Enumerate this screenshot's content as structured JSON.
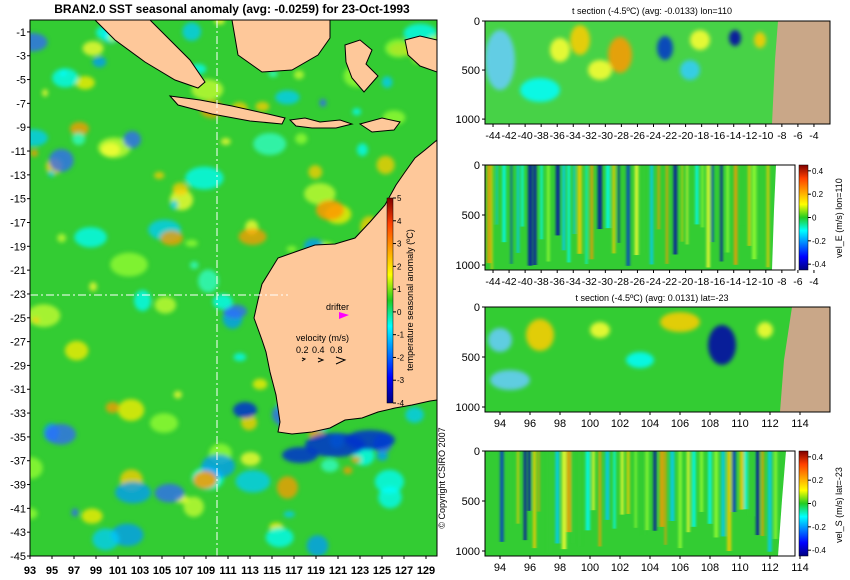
{
  "figure": {
    "main_title": "BRAN2.0 SST seasonal anomaly (avg: -0.0259) for 23-Oct-1993",
    "copyright": "© Copyright CSIRO 2007",
    "drifter_label": "drifter",
    "velocity_label": "velocity (m/s)",
    "velocity_scale": [
      "0.2",
      "0.4",
      "0.8"
    ],
    "colors": {
      "land": "#fec89a",
      "ocean_base": "#33cc33",
      "section_land": "#c9a788",
      "drifter": "#ff00ff"
    }
  },
  "chart_data": [
    {
      "type": "heatmap",
      "name": "map",
      "title": "BRAN2.0 SST seasonal anomaly (avg: -0.0259) for 23-Oct-1993",
      "x_ticks": [
        "93",
        "95",
        "97",
        "99",
        "101",
        "103",
        "105",
        "107",
        "109",
        "111",
        "113",
        "115",
        "117",
        "119",
        "121",
        "123",
        "125",
        "127",
        "129"
      ],
      "y_ticks": [
        "-1",
        "-3",
        "-5",
        "-7",
        "-9",
        "-11",
        "-13",
        "-15",
        "-17",
        "-19",
        "-21",
        "-23",
        "-25",
        "-27",
        "-29",
        "-31",
        "-33",
        "-35",
        "-37",
        "-39",
        "-41",
        "-43",
        "-45"
      ],
      "xlim": [
        93,
        130
      ],
      "ylim": [
        -45,
        0
      ],
      "section_lon": 110,
      "section_lat": -23,
      "colorbar": {
        "label": "temperature seasonal anomaly (ºC)",
        "ticks": [
          "5",
          "4",
          "3",
          "2",
          "1",
          "0",
          "-1",
          "-2",
          "-3",
          "-4"
        ],
        "range": [
          -4,
          5
        ]
      }
    },
    {
      "type": "heatmap",
      "name": "temp-lon-section",
      "title": "t section (-4.5ºC) (avg: -0.0133) lon=110",
      "x_ticks": [
        "-44",
        "-42",
        "-40",
        "-38",
        "-36",
        "-34",
        "-32",
        "-30",
        "-28",
        "-26",
        "-24",
        "-22",
        "-20",
        "-18",
        "-16",
        "-14",
        "-12",
        "-10",
        "-8",
        "-6",
        "-4"
      ],
      "y_ticks": [
        "0",
        "500",
        "1000"
      ],
      "xlim": [
        -45,
        -2
      ],
      "ylim": [
        1050,
        0
      ]
    },
    {
      "type": "heatmap",
      "name": "vel-e-section",
      "title": "",
      "x_ticks": [
        "-44",
        "-42",
        "-40",
        "-38",
        "-36",
        "-34",
        "-32",
        "-30",
        "-28",
        "-26",
        "-24",
        "-22",
        "-20",
        "-18",
        "-16",
        "-14",
        "-12",
        "-10",
        "-8",
        "-6",
        "-4"
      ],
      "y_ticks": [
        "0",
        "500",
        "1000"
      ],
      "xlim": [
        -45,
        -2
      ],
      "ylim": [
        1050,
        0
      ],
      "colorbar": {
        "label": "vel_E (m/s) lon=110",
        "ticks": [
          "0.4",
          "0.2",
          "0",
          "-0.2",
          "-0.4"
        ],
        "range": [
          -0.45,
          0.45
        ]
      }
    },
    {
      "type": "heatmap",
      "name": "temp-lat-section",
      "title": "t section (-4.5ºC) (avg: 0.0131) lat=-23",
      "x_ticks": [
        "94",
        "96",
        "98",
        "100",
        "102",
        "104",
        "106",
        "108",
        "110",
        "112",
        "114"
      ],
      "y_ticks": [
        "0",
        "500",
        "1000"
      ],
      "xlim": [
        93,
        116
      ],
      "ylim": [
        1050,
        0
      ]
    },
    {
      "type": "heatmap",
      "name": "vel-s-section",
      "title": "",
      "x_ticks": [
        "94",
        "96",
        "98",
        "100",
        "102",
        "104",
        "106",
        "108",
        "110",
        "112",
        "114"
      ],
      "y_ticks": [
        "0",
        "500",
        "1000"
      ],
      "xlim": [
        93,
        116
      ],
      "ylim": [
        1050,
        0
      ],
      "colorbar": {
        "label": "vel_S (m/s) lat=-23",
        "ticks": [
          "0.4",
          "0.2",
          "0",
          "-0.2",
          "-0.4"
        ],
        "range": [
          -0.45,
          0.45
        ]
      }
    }
  ]
}
